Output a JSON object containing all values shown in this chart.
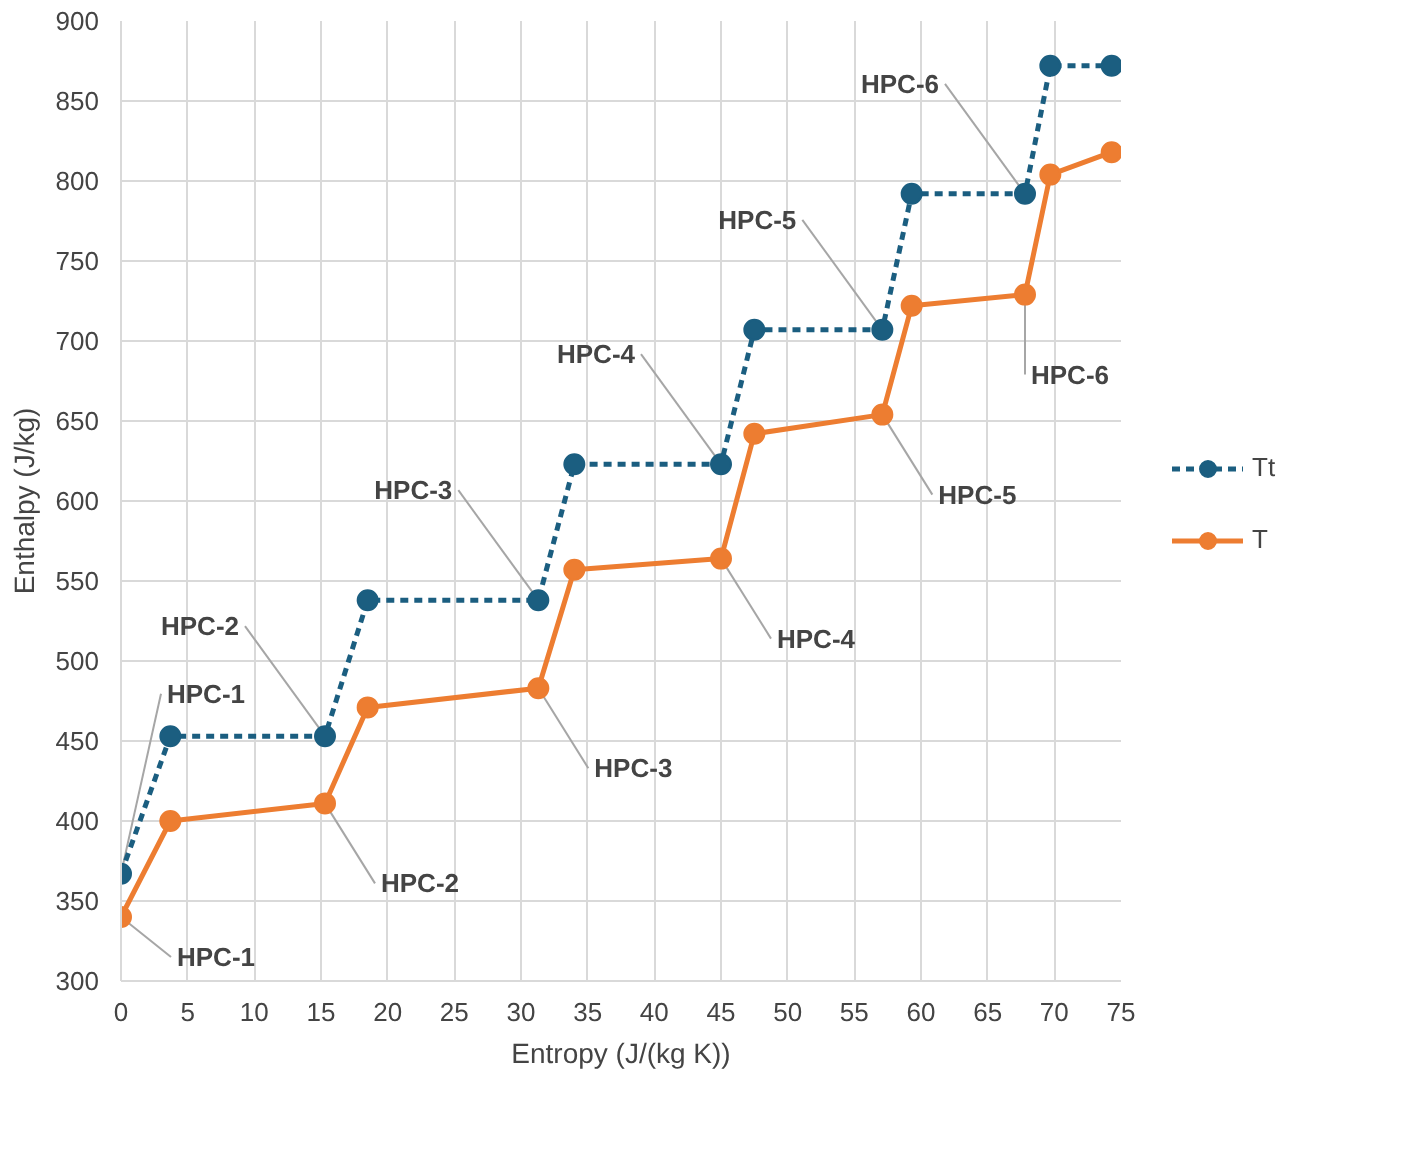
{
  "chart_data": {
    "type": "line",
    "xlabel": "Entropy (J/(kg K))",
    "ylabel": "Enthalpy (J/kg)",
    "x": [
      0,
      3.7,
      15.3,
      18.5,
      31.3,
      34.0,
      45.0,
      47.5,
      57.1,
      59.3,
      67.8,
      69.7,
      74.3
    ],
    "series": [
      {
        "name": "Tt",
        "color": "#1b5e80",
        "line_style": "dashed",
        "values": [
          367,
          453,
          453,
          538,
          538,
          623,
          623,
          707,
          707,
          792,
          792,
          872,
          872
        ]
      },
      {
        "name": "T",
        "color": "#ed7d31",
        "line_style": "solid",
        "values": [
          340,
          400,
          411,
          471,
          483,
          557,
          564,
          642,
          654,
          722,
          729,
          804,
          818
        ]
      }
    ],
    "marker": "circle",
    "xlim": [
      0,
      75
    ],
    "ylim": [
      300,
      900
    ],
    "xticks": [
      0,
      5,
      10,
      15,
      20,
      25,
      30,
      35,
      40,
      45,
      50,
      55,
      60,
      65,
      70,
      75
    ],
    "yticks": [
      300,
      350,
      400,
      450,
      500,
      550,
      600,
      650,
      700,
      750,
      800,
      850,
      900
    ],
    "grid": true,
    "legend": "right",
    "annotations": [
      {
        "text": "HPC-1",
        "x": 0,
        "y": 367
      },
      {
        "text": "HPC-2",
        "x": 15.3,
        "y": 453
      },
      {
        "text": "HPC-3",
        "x": 31.3,
        "y": 538
      },
      {
        "text": "HPC-4",
        "x": 45.0,
        "y": 623
      },
      {
        "text": "HPC-5",
        "x": 57.1,
        "y": 707
      },
      {
        "text": "HPC-6",
        "x": 67.8,
        "y": 792
      },
      {
        "text": "HPC-1",
        "x": 0,
        "y": 340
      },
      {
        "text": "HPC-2",
        "x": 15.3,
        "y": 411
      },
      {
        "text": "HPC-3",
        "x": 31.3,
        "y": 483
      },
      {
        "text": "HPC-4",
        "x": 45.0,
        "y": 564
      },
      {
        "text": "HPC-5",
        "x": 57.1,
        "y": 654
      },
      {
        "text": "HPC-6",
        "x": 67.8,
        "y": 729
      }
    ]
  }
}
